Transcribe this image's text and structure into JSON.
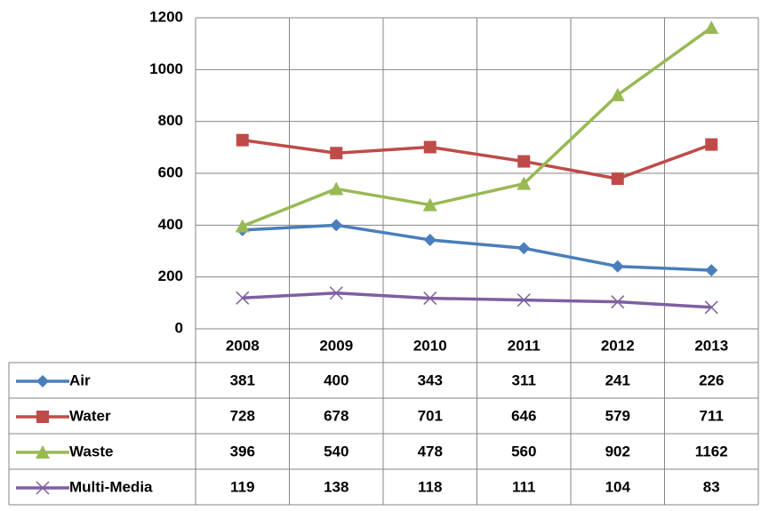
{
  "chart_data": {
    "type": "line",
    "categories": [
      "2008",
      "2009",
      "2010",
      "2011",
      "2012",
      "2013"
    ],
    "series": [
      {
        "name": "Air",
        "color": "#4a7ebb",
        "marker": "diamond",
        "values": [
          381,
          400,
          343,
          311,
          241,
          226
        ]
      },
      {
        "name": "Water",
        "color": "#be4b48",
        "marker": "square",
        "values": [
          728,
          678,
          701,
          646,
          579,
          711
        ]
      },
      {
        "name": "Waste",
        "color": "#98b954",
        "marker": "triangle",
        "values": [
          396,
          540,
          478,
          560,
          902,
          1162
        ]
      },
      {
        "name": "Multi-Media",
        "color": "#7d60a0",
        "marker": "x",
        "values": [
          119,
          138,
          118,
          111,
          104,
          83
        ]
      }
    ],
    "ylim": [
      0,
      1200
    ],
    "yticks": [
      0,
      200,
      400,
      600,
      800,
      1000,
      1200
    ],
    "grid": true,
    "data_table": true
  }
}
